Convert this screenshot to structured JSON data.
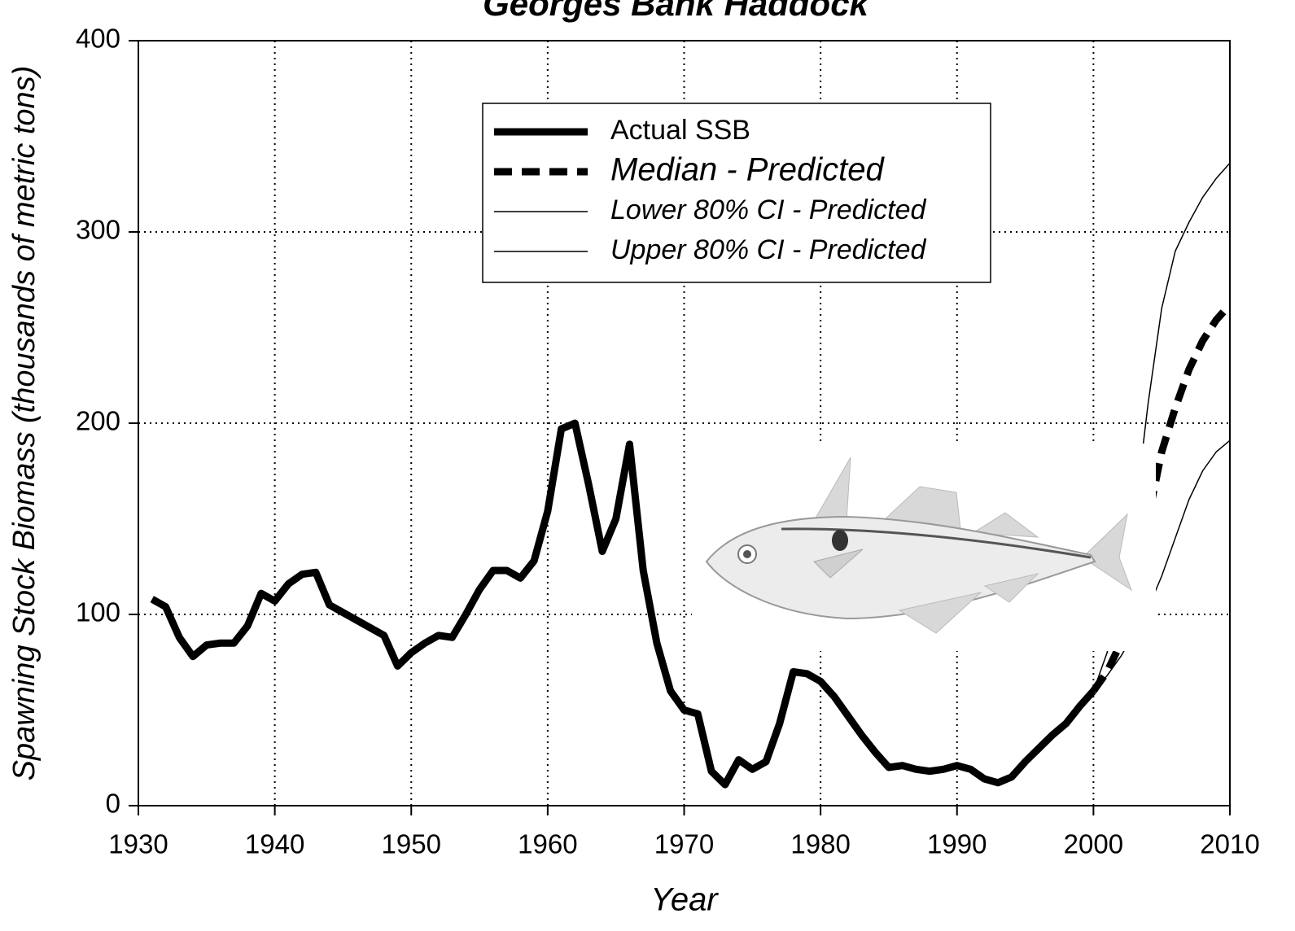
{
  "chart_data": {
    "type": "line",
    "title": "Georges Bank Haddock",
    "x_label": "Year",
    "y_label": "Spawning Stock Biomass (thousands of metric tons)",
    "xlim": [
      1930,
      2010
    ],
    "xticks": [
      1930,
      1940,
      1950,
      1960,
      1970,
      1980,
      1990,
      2000,
      2010
    ],
    "ylim": [
      0,
      400
    ],
    "yticks": [
      0,
      100,
      200,
      300,
      400
    ],
    "grid": true,
    "legend": "top",
    "series": [
      {
        "name": "Actual SSB",
        "color": "#000000",
        "style": "solid",
        "x": [
          1931,
          1932,
          1933,
          1934,
          1935,
          1936,
          1937,
          1938,
          1939,
          1940,
          1941,
          1942,
          1943,
          1944,
          1945,
          1946,
          1947,
          1948,
          1949,
          1950,
          1951,
          1952,
          1953,
          1954,
          1955,
          1956,
          1957,
          1958,
          1959,
          1960,
          1961,
          1962,
          1963,
          1964,
          1965,
          1966,
          1967,
          1968,
          1969,
          1970,
          1971,
          1972,
          1973,
          1974,
          1975,
          1976,
          1977,
          1978,
          1979,
          1980,
          1981,
          1982,
          1983,
          1984,
          1985,
          1986,
          1987,
          1988,
          1989,
          1990,
          1991,
          1992,
          1993,
          1994,
          1995,
          1996,
          1997,
          1998,
          1999,
          2000
        ],
        "values": [
          108,
          104,
          88,
          78,
          84,
          85,
          85,
          94,
          111,
          107,
          116,
          121,
          122,
          105,
          101,
          97,
          93,
          89,
          73,
          80,
          85,
          89,
          88,
          100,
          113,
          123,
          123,
          119,
          128,
          154,
          197,
          200,
          168,
          133,
          150,
          189,
          123,
          85,
          60,
          50,
          48,
          18,
          11,
          24,
          19,
          23,
          43,
          70,
          69,
          65,
          57,
          47,
          37,
          28,
          20,
          21,
          19,
          18,
          19,
          21,
          19,
          14,
          12,
          15,
          23,
          30,
          37,
          43,
          52,
          60
        ]
      },
      {
        "name": "Median - Predicted",
        "color": "#000000",
        "style": "dashed",
        "x": [
          2000,
          2001,
          2002,
          2003,
          2004,
          2005,
          2006,
          2007,
          2008,
          2009,
          2010
        ],
        "values": [
          60,
          70,
          85,
          110,
          150,
          185,
          208,
          228,
          243,
          254,
          262
        ]
      },
      {
        "name": "Lower 80% CI - Predicted",
        "color": "#000000",
        "style": "thin",
        "x": [
          2000,
          2001,
          2002,
          2003,
          2004,
          2005,
          2006,
          2007,
          2008,
          2009,
          2010
        ],
        "values": [
          60,
          68,
          78,
          90,
          103,
          120,
          140,
          160,
          175,
          185,
          191
        ]
      },
      {
        "name": "Upper 80% CI - Predicted",
        "color": "#000000",
        "style": "thin",
        "x": [
          2000,
          2001,
          2002,
          2003,
          2004,
          2005,
          2006,
          2007,
          2008,
          2009,
          2010
        ],
        "values": [
          60,
          80,
          110,
          150,
          210,
          260,
          290,
          305,
          318,
          328,
          336
        ]
      }
    ]
  }
}
